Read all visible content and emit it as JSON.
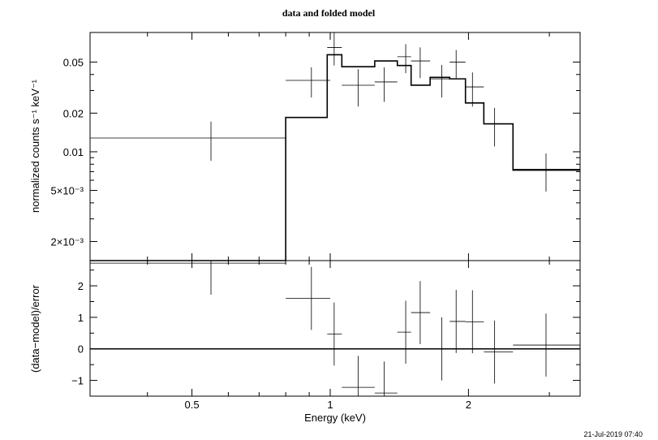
{
  "title": "data and folded model",
  "timestamp": "21-Jul-2019 07:40",
  "chart_data": [
    {
      "type": "scatter",
      "panel": "spectrum",
      "title": "data and folded model",
      "ylabel": "normalized counts s⁻¹ keV⁻¹",
      "yscale": "log",
      "xscale": "log",
      "xlim": [
        0.3,
        3.5
      ],
      "ylim": [
        0.00142,
        0.085
      ],
      "yticks": [
        {
          "value": 0.05,
          "label": "0.05"
        },
        {
          "value": 0.02,
          "label": "0.02"
        },
        {
          "value": 0.01,
          "label": "0.01"
        },
        {
          "value": 0.005,
          "label": "5×10⁻³"
        },
        {
          "value": 0.002,
          "label": "2×10⁻³"
        }
      ],
      "series": [
        {
          "kind": "data",
          "points": [
            {
              "x": 0.55,
              "xlo": 0.3,
              "xhi": 0.8,
              "y": 0.0128,
              "ylo": 0.0085,
              "yhi": 0.0172
            },
            {
              "x": 0.91,
              "xlo": 0.8,
              "xhi": 1.0,
              "y": 0.036,
              "ylo": 0.0265,
              "yhi": 0.0455
            },
            {
              "x": 1.02,
              "xlo": 0.985,
              "xhi": 1.06,
              "y": 0.065,
              "ylo": 0.047,
              "yhi": 0.085
            },
            {
              "x": 1.15,
              "xlo": 1.06,
              "xhi": 1.25,
              "y": 0.033,
              "ylo": 0.0225,
              "yhi": 0.044
            },
            {
              "x": 1.31,
              "xlo": 1.25,
              "xhi": 1.4,
              "y": 0.035,
              "ylo": 0.0245,
              "yhi": 0.0455
            },
            {
              "x": 1.46,
              "xlo": 1.4,
              "xhi": 1.5,
              "y": 0.055,
              "ylo": 0.041,
              "yhi": 0.069
            },
            {
              "x": 1.57,
              "xlo": 1.5,
              "xhi": 1.65,
              "y": 0.051,
              "ylo": 0.0375,
              "yhi": 0.065
            },
            {
              "x": 1.75,
              "xlo": 1.65,
              "xhi": 1.82,
              "y": 0.037,
              "ylo": 0.0265,
              "yhi": 0.0475
            },
            {
              "x": 1.88,
              "xlo": 1.82,
              "xhi": 1.97,
              "y": 0.05,
              "ylo": 0.0375,
              "yhi": 0.062
            },
            {
              "x": 2.04,
              "xlo": 1.97,
              "xhi": 2.16,
              "y": 0.032,
              "ylo": 0.0225,
              "yhi": 0.0415
            },
            {
              "x": 2.28,
              "xlo": 2.16,
              "xhi": 2.5,
              "y": 0.0165,
              "ylo": 0.011,
              "yhi": 0.022
            },
            {
              "x": 2.95,
              "xlo": 2.5,
              "xhi": 3.5,
              "y": 0.0073,
              "ylo": 0.0049,
              "yhi": 0.0097
            }
          ]
        },
        {
          "kind": "model",
          "steps": [
            {
              "xlo": 0.3,
              "xhi": 0.8,
              "y": 0.0012
            },
            {
              "xlo": 0.8,
              "xhi": 0.985,
              "y": 0.0185
            },
            {
              "xlo": 0.985,
              "xhi": 1.06,
              "y": 0.057
            },
            {
              "xlo": 1.06,
              "xhi": 1.25,
              "y": 0.046
            },
            {
              "xlo": 1.25,
              "xhi": 1.4,
              "y": 0.051
            },
            {
              "xlo": 1.4,
              "xhi": 1.5,
              "y": 0.047
            },
            {
              "xlo": 1.5,
              "xhi": 1.65,
              "y": 0.033
            },
            {
              "xlo": 1.65,
              "xhi": 1.82,
              "y": 0.038
            },
            {
              "xlo": 1.82,
              "xhi": 1.97,
              "y": 0.037
            },
            {
              "xlo": 1.97,
              "xhi": 2.16,
              "y": 0.024
            },
            {
              "xlo": 2.16,
              "xhi": 2.5,
              "y": 0.0165
            },
            {
              "xlo": 2.5,
              "xhi": 3.5,
              "y": 0.0072
            }
          ]
        }
      ]
    },
    {
      "type": "scatter",
      "panel": "residuals",
      "ylabel": "(data−model)/error",
      "xlabel": "Energy (keV)",
      "xscale": "log",
      "xlim": [
        0.3,
        3.5
      ],
      "ylim": [
        -1.5,
        2.8
      ],
      "yticks": [
        {
          "value": 2,
          "label": "2"
        },
        {
          "value": 1,
          "label": "1"
        },
        {
          "value": 0,
          "label": "0"
        },
        {
          "value": -1,
          "label": "−1"
        }
      ],
      "xticks": [
        {
          "value": 0.5,
          "label": "0.5"
        },
        {
          "value": 1,
          "label": "1"
        },
        {
          "value": 2,
          "label": "2"
        }
      ],
      "points": [
        {
          "x": 0.55,
          "xlo": 0.3,
          "xhi": 0.8,
          "y": 2.72,
          "ylo": 1.72,
          "yhi": 3.72
        },
        {
          "x": 0.91,
          "xlo": 0.8,
          "xhi": 1.0,
          "y": 1.6,
          "ylo": 0.6,
          "yhi": 2.6
        },
        {
          "x": 1.02,
          "xlo": 0.985,
          "xhi": 1.06,
          "y": 0.47,
          "ylo": -0.53,
          "yhi": 1.47
        },
        {
          "x": 1.15,
          "xlo": 1.06,
          "xhi": 1.25,
          "y": -1.22,
          "ylo": -2.22,
          "yhi": -0.22
        },
        {
          "x": 1.31,
          "xlo": 1.25,
          "xhi": 1.4,
          "y": -1.4,
          "ylo": -2.4,
          "yhi": -0.4
        },
        {
          "x": 1.46,
          "xlo": 1.4,
          "xhi": 1.5,
          "y": 0.53,
          "ylo": -0.47,
          "yhi": 1.53
        },
        {
          "x": 1.57,
          "xlo": 1.5,
          "xhi": 1.65,
          "y": 1.15,
          "ylo": 0.15,
          "yhi": 2.15
        },
        {
          "x": 1.75,
          "xlo": 1.65,
          "xhi": 1.82,
          "y": 0.0,
          "ylo": -1.0,
          "yhi": 1.0
        },
        {
          "x": 1.88,
          "xlo": 1.82,
          "xhi": 1.97,
          "y": 0.87,
          "ylo": -0.13,
          "yhi": 1.87
        },
        {
          "x": 2.04,
          "xlo": 1.97,
          "xhi": 2.16,
          "y": 0.86,
          "ylo": -0.14,
          "yhi": 1.86
        },
        {
          "x": 2.28,
          "xlo": 2.16,
          "xhi": 2.5,
          "y": -0.1,
          "ylo": -1.1,
          "yhi": 0.9
        },
        {
          "x": 2.95,
          "xlo": 2.5,
          "xhi": 3.5,
          "y": 0.12,
          "ylo": -0.88,
          "yhi": 1.12
        }
      ]
    }
  ]
}
